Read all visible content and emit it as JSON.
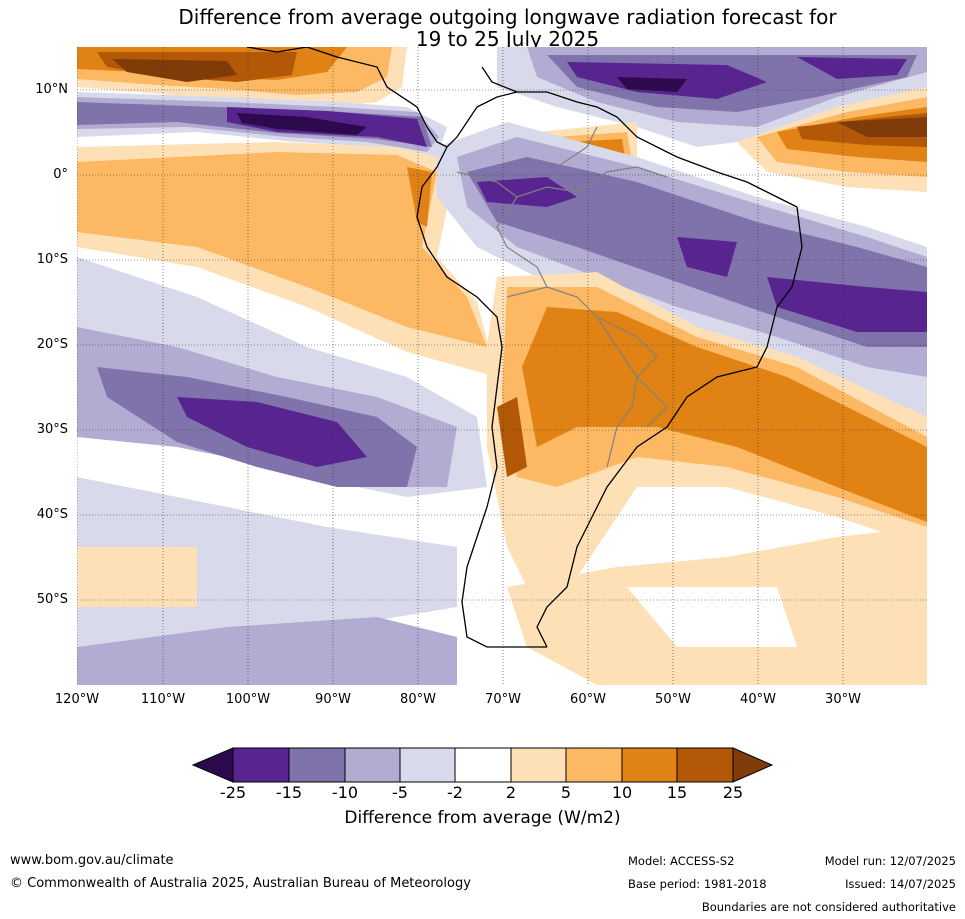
{
  "title_line1": "Difference from average outgoing longwave radiation forecast for",
  "title_line2": "19 to 25 July 2025",
  "map": {
    "latitude_labels": [
      "10°N",
      "0°",
      "10°S",
      "20°S",
      "30°S",
      "40°S",
      "50°S"
    ],
    "longitude_labels": [
      "120°W",
      "110°W",
      "100°W",
      "90°W",
      "80°W",
      "70°W",
      "60°W",
      "50°W",
      "40°W",
      "30°W"
    ],
    "colors": {
      "c_m25": "#2d0a4e",
      "c_m15": "#582590",
      "c_m10": "#8073ac",
      "c_m5": "#b2abd2",
      "c_m2": "#d8daeb",
      "c_zero": "#ffffff",
      "c_p2": "#fee0b6",
      "c_p5": "#fdb863",
      "c_p10": "#e08214",
      "c_p15": "#b35806",
      "c_p25": "#7f3b08",
      "coast": "#000000",
      "border": "#808080"
    }
  },
  "colorbar": {
    "ticks": [
      "-25",
      "-15",
      "-10",
      "-5",
      "-2",
      "2",
      "5",
      "10",
      "15",
      "25"
    ],
    "colors": [
      "#2d0a4e",
      "#582590",
      "#8073ac",
      "#b2abd2",
      "#d8daeb",
      "#ffffff",
      "#fee0b6",
      "#fdb863",
      "#e08214",
      "#b35806",
      "#7f3b08"
    ],
    "label": "Difference from average (W/m2)"
  },
  "footer": {
    "website": "www.bom.gov.au/climate",
    "copyright": "© Commonwealth of Australia 2025, Australian Bureau of Meteorology",
    "model": "Model: ACCESS-S2",
    "base_period": "Base period: 1981-2018",
    "model_run": "Model run: 12/07/2025",
    "issued": "Issued: 14/07/2025",
    "disclaimer": "Boundaries are not considered authoritative"
  }
}
